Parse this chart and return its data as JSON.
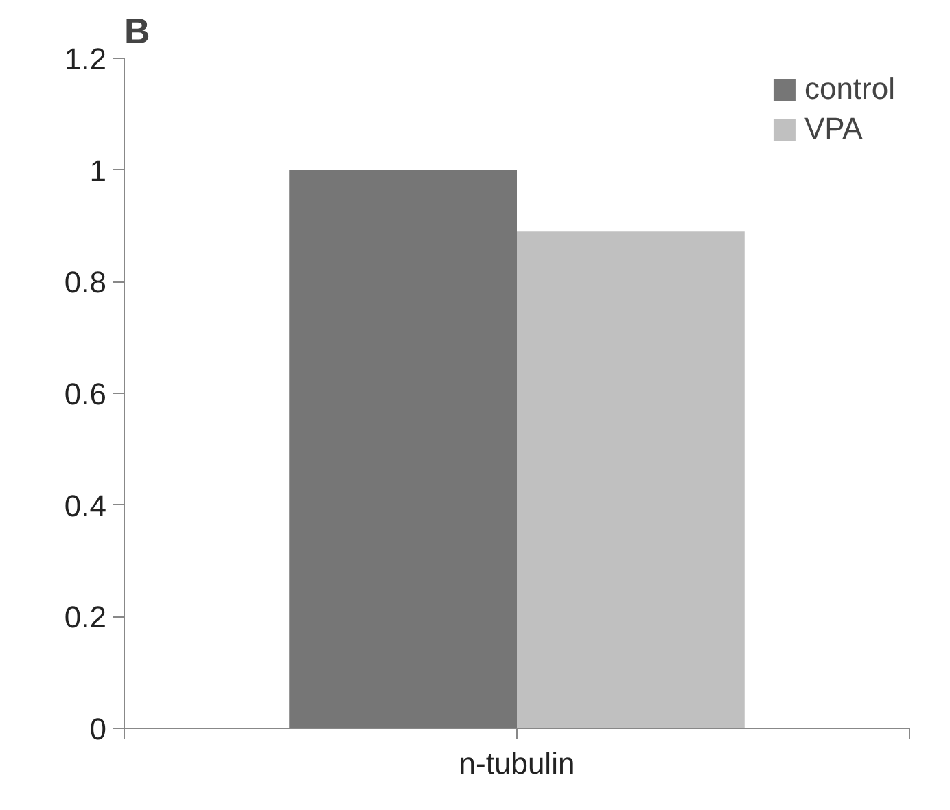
{
  "chart_data": {
    "type": "bar",
    "title": "B",
    "categories": [
      "n-tubulin"
    ],
    "series": [
      {
        "name": "control",
        "color": "#767676",
        "values": [
          1.0
        ]
      },
      {
        "name": "VPA",
        "color": "#c0c0c0",
        "values": [
          0.89
        ]
      }
    ],
    "ylim": [
      0,
      1.2
    ],
    "yticks": [
      0,
      0.2,
      0.4,
      0.6,
      0.8,
      1,
      1.2
    ],
    "grid": false,
    "legend": "top right"
  }
}
